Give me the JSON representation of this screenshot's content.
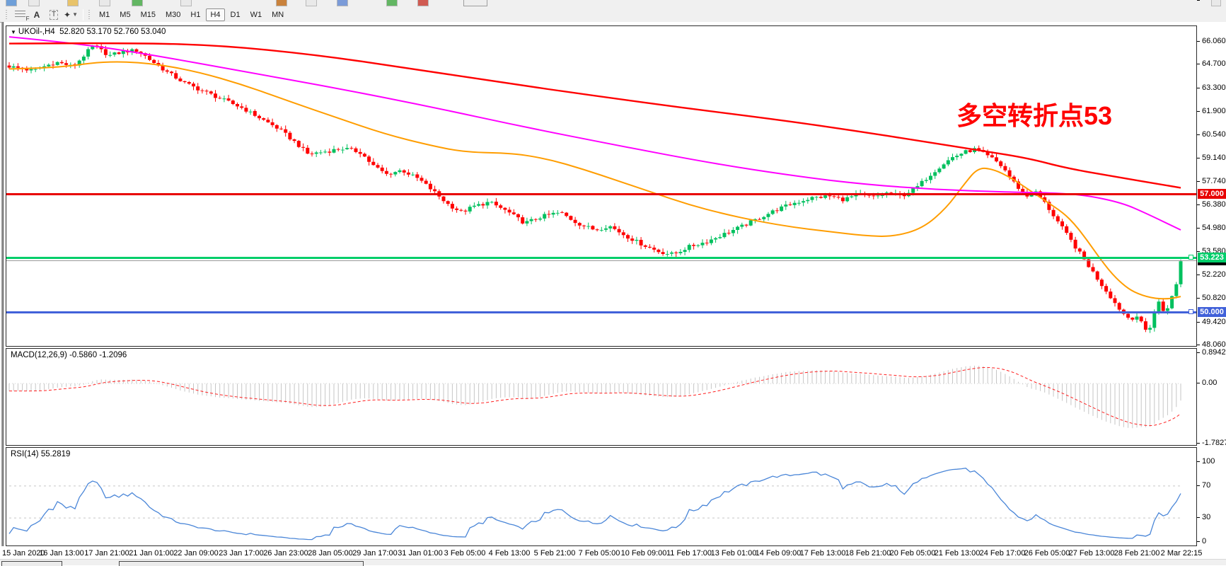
{
  "toolbar": {
    "tools": [
      {
        "name": "fibonacci-retracement",
        "glyph": "F"
      },
      {
        "name": "text",
        "glyph": "A"
      },
      {
        "name": "text-label",
        "glyph": "T"
      },
      {
        "name": "arrow-objects",
        "glyph": "✦"
      }
    ],
    "timeframes": [
      "M1",
      "M5",
      "M15",
      "M30",
      "H1",
      "H4",
      "D1",
      "W1",
      "MN"
    ],
    "active_timeframe": "H4"
  },
  "chart": {
    "title": {
      "symbol": "UKOil-,H4",
      "ohlc": "52.820 53.170 52.760 53.040"
    },
    "annotation": {
      "text": "多空转折点53",
      "color": "#ff0000"
    },
    "current_price": {
      "label": "53.040",
      "value": 53.04,
      "line_color": "#9a9a9a",
      "badge_color": "#000000"
    }
  },
  "chart_data": {
    "type": "candlestick",
    "symbol": "UKOil-",
    "timeframe": "H4",
    "ohlc_display": {
      "open": 52.82,
      "high": 53.17,
      "low": 52.76,
      "close": 53.04
    },
    "candle_count": 268,
    "colors": {
      "bull": "#00c05e",
      "bear": "#ff0000",
      "ma_fast": "#ff9d00",
      "ma_medium": "#ff00ff",
      "ma_slow": "#ff0000",
      "macd_hist": "#c6c6c6",
      "macd_signal": "#ff2020",
      "rsi": "#4a86d8",
      "level_dash": "#c8c8c8"
    },
    "y_axis": {
      "min": 48.06,
      "max": 66.06,
      "tick_values": [
        66.06,
        64.7,
        63.3,
        61.9,
        60.54,
        59.14,
        57.74,
        56.38,
        54.98,
        53.58,
        52.22,
        50.82,
        49.42,
        48.06
      ],
      "tick_labels": [
        "66.060",
        "64.700",
        "63.300",
        "61.900",
        "60.540",
        "59.140",
        "57.740",
        "56.380",
        "54.980",
        "53.580",
        "52.220",
        "50.820",
        "49.420",
        "48.060"
      ]
    },
    "x_axis": {
      "labels": [
        "15 Jan 2020",
        "16 Jan 13:00",
        "17 Jan 21:00",
        "21 Jan 01:00",
        "22 Jan 09:00",
        "23 Jan 17:00",
        "26 Jan 23:00",
        "28 Jan 05:00",
        "29 Jan 17:00",
        "31 Jan 01:00",
        "3 Feb 05:00",
        "4 Feb 13:00",
        "5 Feb 21:00",
        "7 Feb 05:00",
        "10 Feb 09:00",
        "11 Feb 17:00",
        "13 Feb 01:00",
        "14 Feb 09:00",
        "17 Feb 13:00",
        "18 Feb 21:00",
        "20 Feb 05:00",
        "21 Feb 13:00",
        "24 Feb 17:00",
        "26 Feb 05:00",
        "27 Feb 13:00",
        "28 Feb 21:00",
        "2 Mar 22:15"
      ]
    },
    "hlines": [
      {
        "name": "resistance",
        "price": 57.0,
        "label": "57.000",
        "color": "#e80000",
        "thickness": 3,
        "handles": false
      },
      {
        "name": "pivot",
        "price": 53.223,
        "label": "53.223",
        "color": "#00ce6a",
        "thickness": 3,
        "handles": true
      },
      {
        "name": "support",
        "price": 50.0,
        "label": "50.000",
        "color": "#4161d9",
        "thickness": 3,
        "handles": true
      }
    ],
    "price_path": [
      [
        0,
        64.6
      ],
      [
        0.02,
        64.35
      ],
      [
        0.04,
        64.85
      ],
      [
        0.055,
        64.6
      ],
      [
        0.072,
        65.85
      ],
      [
        0.085,
        65.25
      ],
      [
        0.1,
        65.5
      ],
      [
        0.11,
        65.55
      ],
      [
        0.12,
        65.0
      ],
      [
        0.135,
        64.25
      ],
      [
        0.15,
        63.6
      ],
      [
        0.17,
        63.0
      ],
      [
        0.185,
        62.55
      ],
      [
        0.2,
        62.1
      ],
      [
        0.215,
        61.5
      ],
      [
        0.23,
        60.9
      ],
      [
        0.245,
        60.05
      ],
      [
        0.255,
        59.4
      ],
      [
        0.27,
        59.55
      ],
      [
        0.285,
        59.75
      ],
      [
        0.3,
        59.5
      ],
      [
        0.31,
        58.75
      ],
      [
        0.322,
        58.2
      ],
      [
        0.335,
        58.45
      ],
      [
        0.35,
        57.9
      ],
      [
        0.362,
        57.2
      ],
      [
        0.375,
        56.4
      ],
      [
        0.386,
        55.95
      ],
      [
        0.397,
        56.3
      ],
      [
        0.41,
        56.55
      ],
      [
        0.425,
        56.0
      ],
      [
        0.44,
        55.3
      ],
      [
        0.455,
        55.7
      ],
      [
        0.47,
        55.95
      ],
      [
        0.485,
        55.3
      ],
      [
        0.5,
        54.9
      ],
      [
        0.512,
        55.15
      ],
      [
        0.525,
        54.6
      ],
      [
        0.54,
        54.05
      ],
      [
        0.555,
        53.6
      ],
      [
        0.567,
        53.45
      ],
      [
        0.58,
        53.9
      ],
      [
        0.595,
        54.2
      ],
      [
        0.61,
        54.65
      ],
      [
        0.625,
        55.1
      ],
      [
        0.64,
        55.6
      ],
      [
        0.655,
        56.1
      ],
      [
        0.67,
        56.5
      ],
      [
        0.685,
        56.8
      ],
      [
        0.7,
        56.9
      ],
      [
        0.712,
        56.7
      ],
      [
        0.725,
        57.0
      ],
      [
        0.737,
        56.85
      ],
      [
        0.75,
        57.1
      ],
      [
        0.762,
        56.9
      ],
      [
        0.775,
        57.45
      ],
      [
        0.785,
        58.1
      ],
      [
        0.795,
        58.7
      ],
      [
        0.805,
        59.2
      ],
      [
        0.815,
        59.5
      ],
      [
        0.825,
        59.7
      ],
      [
        0.833,
        59.35
      ],
      [
        0.841,
        59.05
      ],
      [
        0.849,
        58.55
      ],
      [
        0.855,
        57.95
      ],
      [
        0.862,
        57.35
      ],
      [
        0.869,
        56.9
      ],
      [
        0.876,
        57.15
      ],
      [
        0.883,
        56.6
      ],
      [
        0.89,
        55.9
      ],
      [
        0.897,
        55.2
      ],
      [
        0.904,
        54.5
      ],
      [
        0.911,
        53.8
      ],
      [
        0.918,
        53.1
      ],
      [
        0.925,
        52.4
      ],
      [
        0.932,
        51.7
      ],
      [
        0.939,
        51.05
      ],
      [
        0.945,
        50.45
      ],
      [
        0.951,
        49.95
      ],
      [
        0.957,
        49.6
      ],
      [
        0.962,
        49.85
      ],
      [
        0.967,
        49.3
      ],
      [
        0.972,
        48.75
      ],
      [
        0.977,
        49.9
      ],
      [
        0.981,
        50.65
      ],
      [
        0.984,
        50.2
      ],
      [
        0.987,
        49.95
      ],
      [
        0.99,
        50.6
      ],
      [
        0.992,
        51.0
      ],
      [
        0.994,
        50.7
      ],
      [
        0.996,
        51.55
      ],
      [
        0.998,
        52.35
      ],
      [
        1,
        53.04
      ]
    ],
    "history_path": [
      [
        -0.26,
        66.9
      ],
      [
        -0.2,
        66.35
      ],
      [
        -0.15,
        66.65
      ],
      [
        -0.1,
        65.9
      ],
      [
        -0.05,
        65.2
      ],
      [
        -0.02,
        64.8
      ],
      [
        0,
        64.6
      ]
    ],
    "moving_averages": {
      "fast": [
        [
          0,
          64.45
        ],
        [
          0.04,
          64.5
        ],
        [
          0.08,
          64.9
        ],
        [
          0.12,
          64.8
        ],
        [
          0.16,
          64.3
        ],
        [
          0.2,
          63.5
        ],
        [
          0.24,
          62.5
        ],
        [
          0.28,
          61.55
        ],
        [
          0.32,
          60.6
        ],
        [
          0.36,
          59.9
        ],
        [
          0.39,
          59.5
        ],
        [
          0.43,
          59.45
        ],
        [
          0.46,
          59.1
        ],
        [
          0.49,
          58.5
        ],
        [
          0.52,
          57.8
        ],
        [
          0.55,
          57.1
        ],
        [
          0.58,
          56.4
        ],
        [
          0.61,
          55.85
        ],
        [
          0.64,
          55.4
        ],
        [
          0.67,
          55.05
        ],
        [
          0.7,
          54.8
        ],
        [
          0.73,
          54.55
        ],
        [
          0.755,
          54.5
        ],
        [
          0.78,
          55.0
        ],
        [
          0.8,
          56.2
        ],
        [
          0.815,
          57.6
        ],
        [
          0.827,
          58.6
        ],
        [
          0.84,
          58.5
        ],
        [
          0.855,
          58.0
        ],
        [
          0.87,
          57.3
        ],
        [
          0.885,
          56.6
        ],
        [
          0.9,
          55.9
        ],
        [
          0.91,
          55.2
        ],
        [
          0.92,
          54.3
        ],
        [
          0.93,
          53.3
        ],
        [
          0.94,
          52.4
        ],
        [
          0.95,
          51.7
        ],
        [
          0.96,
          51.2
        ],
        [
          0.975,
          50.85
        ],
        [
          0.99,
          50.8
        ],
        [
          1,
          50.95
        ]
      ],
      "medium": [
        [
          0,
          66.35
        ],
        [
          0.06,
          65.95
        ],
        [
          0.12,
          65.3
        ],
        [
          0.2,
          64.3
        ],
        [
          0.28,
          63.3
        ],
        [
          0.36,
          62.2
        ],
        [
          0.44,
          61.0
        ],
        [
          0.52,
          59.9
        ],
        [
          0.6,
          58.85
        ],
        [
          0.67,
          58.1
        ],
        [
          0.73,
          57.6
        ],
        [
          0.79,
          57.3
        ],
        [
          0.85,
          57.15
        ],
        [
          0.89,
          57.1
        ],
        [
          0.92,
          56.95
        ],
        [
          0.95,
          56.5
        ],
        [
          0.97,
          55.9
        ],
        [
          1,
          54.9
        ]
      ],
      "slow": [
        [
          0,
          65.95
        ],
        [
          0.1,
          66.0
        ],
        [
          0.18,
          65.85
        ],
        [
          0.26,
          65.3
        ],
        [
          0.34,
          64.5
        ],
        [
          0.42,
          63.65
        ],
        [
          0.5,
          62.85
        ],
        [
          0.58,
          62.1
        ],
        [
          0.66,
          61.4
        ],
        [
          0.72,
          60.8
        ],
        [
          0.78,
          60.15
        ],
        [
          0.83,
          59.6
        ],
        [
          0.87,
          59.15
        ],
        [
          0.9,
          58.6
        ],
        [
          0.94,
          58.1
        ],
        [
          1,
          57.4
        ]
      ]
    }
  },
  "macd": {
    "label_full": "MACD(12,26,9) -0.5860 -1.2096",
    "name": "MACD",
    "params": [
      12,
      26,
      9
    ],
    "main_value": -0.586,
    "signal_value": -1.2096,
    "tick_values": [
      0.8942,
      0,
      -1.7827
    ],
    "tick_labels": [
      "0.8942",
      "0.00",
      "-1.7827"
    ]
  },
  "rsi": {
    "label_full": "RSI(14) 55.2819",
    "name": "RSI",
    "period": 14,
    "value": 55.2819,
    "tick_values": [
      100,
      70,
      30,
      0
    ],
    "tick_labels": [
      "100",
      "70",
      "30",
      "0"
    ],
    "levels": [
      70,
      30
    ]
  }
}
